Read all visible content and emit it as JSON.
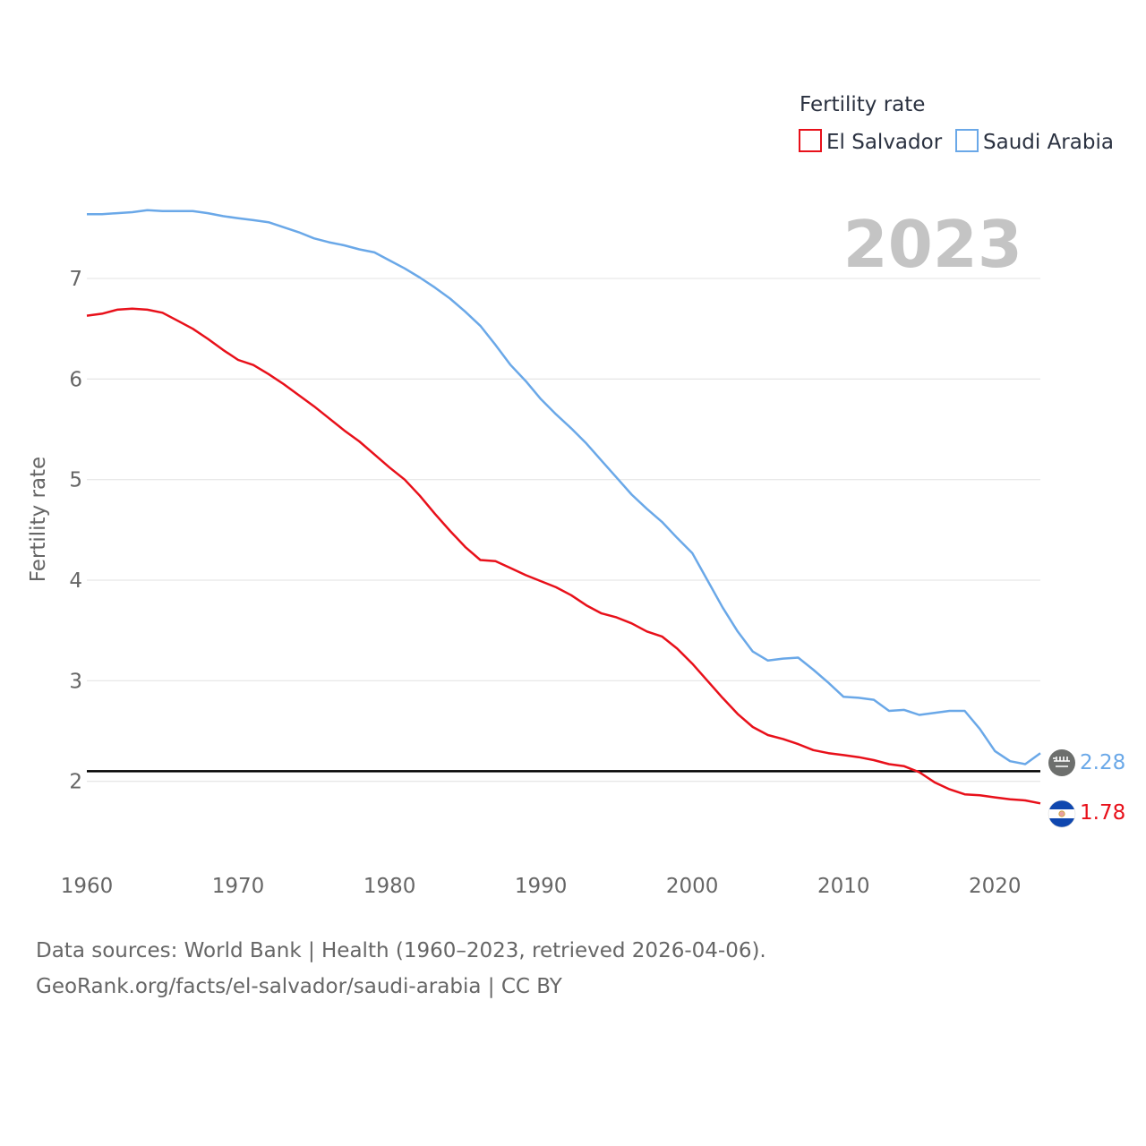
{
  "chart_data": {
    "type": "line",
    "ylabel": "Fertility rate",
    "xlabel": "",
    "legend_title": "Fertility rate",
    "legend_position": "top-right",
    "year_label": "2023",
    "xlim": [
      1960,
      2023
    ],
    "ylim": [
      1.4,
      7.9
    ],
    "x_ticks": [
      1960,
      1970,
      1980,
      1990,
      2000,
      2010,
      2020
    ],
    "y_ticks": [
      2,
      3,
      4,
      5,
      6,
      7
    ],
    "grid": true,
    "reference_line": {
      "y": 2.1,
      "color": "#000000"
    },
    "x": [
      1960,
      1961,
      1962,
      1963,
      1964,
      1965,
      1966,
      1967,
      1968,
      1969,
      1970,
      1971,
      1972,
      1973,
      1974,
      1975,
      1976,
      1977,
      1978,
      1979,
      1980,
      1981,
      1982,
      1983,
      1984,
      1985,
      1986,
      1987,
      1988,
      1989,
      1990,
      1991,
      1992,
      1993,
      1994,
      1995,
      1996,
      1997,
      1998,
      1999,
      2000,
      2001,
      2002,
      2003,
      2004,
      2005,
      2006,
      2007,
      2008,
      2009,
      2010,
      2011,
      2012,
      2013,
      2014,
      2015,
      2016,
      2017,
      2018,
      2019,
      2020,
      2021,
      2022,
      2023
    ],
    "series": [
      {
        "name": "El Salvador",
        "color": "#e8101a",
        "end_label": "1.78",
        "values": [
          6.63,
          6.65,
          6.69,
          6.7,
          6.69,
          6.66,
          6.58,
          6.5,
          6.4,
          6.29,
          6.19,
          6.14,
          6.05,
          5.95,
          5.84,
          5.73,
          5.61,
          5.49,
          5.38,
          5.25,
          5.12,
          5.0,
          4.84,
          4.66,
          4.49,
          4.33,
          4.2,
          4.19,
          4.12,
          4.05,
          3.99,
          3.93,
          3.85,
          3.75,
          3.67,
          3.63,
          3.57,
          3.49,
          3.44,
          3.32,
          3.17,
          3.0,
          2.83,
          2.67,
          2.54,
          2.46,
          2.42,
          2.37,
          2.31,
          2.28,
          2.26,
          2.24,
          2.21,
          2.17,
          2.15,
          2.09,
          1.99,
          1.92,
          1.87,
          1.86,
          1.84,
          1.82,
          1.81,
          1.78
        ]
      },
      {
        "name": "Saudi Arabia",
        "color": "#6aa8e8",
        "end_label": "2.28",
        "values": [
          7.64,
          7.64,
          7.65,
          7.66,
          7.68,
          7.67,
          7.67,
          7.67,
          7.65,
          7.62,
          7.6,
          7.58,
          7.56,
          7.51,
          7.46,
          7.4,
          7.36,
          7.33,
          7.29,
          7.26,
          7.18,
          7.1,
          7.01,
          6.91,
          6.8,
          6.67,
          6.53,
          6.34,
          6.14,
          5.98,
          5.8,
          5.65,
          5.51,
          5.36,
          5.19,
          5.02,
          4.85,
          4.71,
          4.58,
          4.42,
          4.27,
          4.0,
          3.73,
          3.49,
          3.29,
          3.2,
          3.22,
          3.23,
          3.11,
          2.98,
          2.84,
          2.83,
          2.81,
          2.7,
          2.71,
          2.66,
          2.68,
          2.7,
          2.7,
          2.52,
          2.3,
          2.2,
          2.17,
          2.28
        ]
      }
    ]
  },
  "footer": {
    "line1": "Data sources: World Bank | Health (1960–2023, retrieved 2026-04-06).",
    "line2": "GeoRank.org/facts/el-salvador/saudi-arabia | CC BY"
  }
}
